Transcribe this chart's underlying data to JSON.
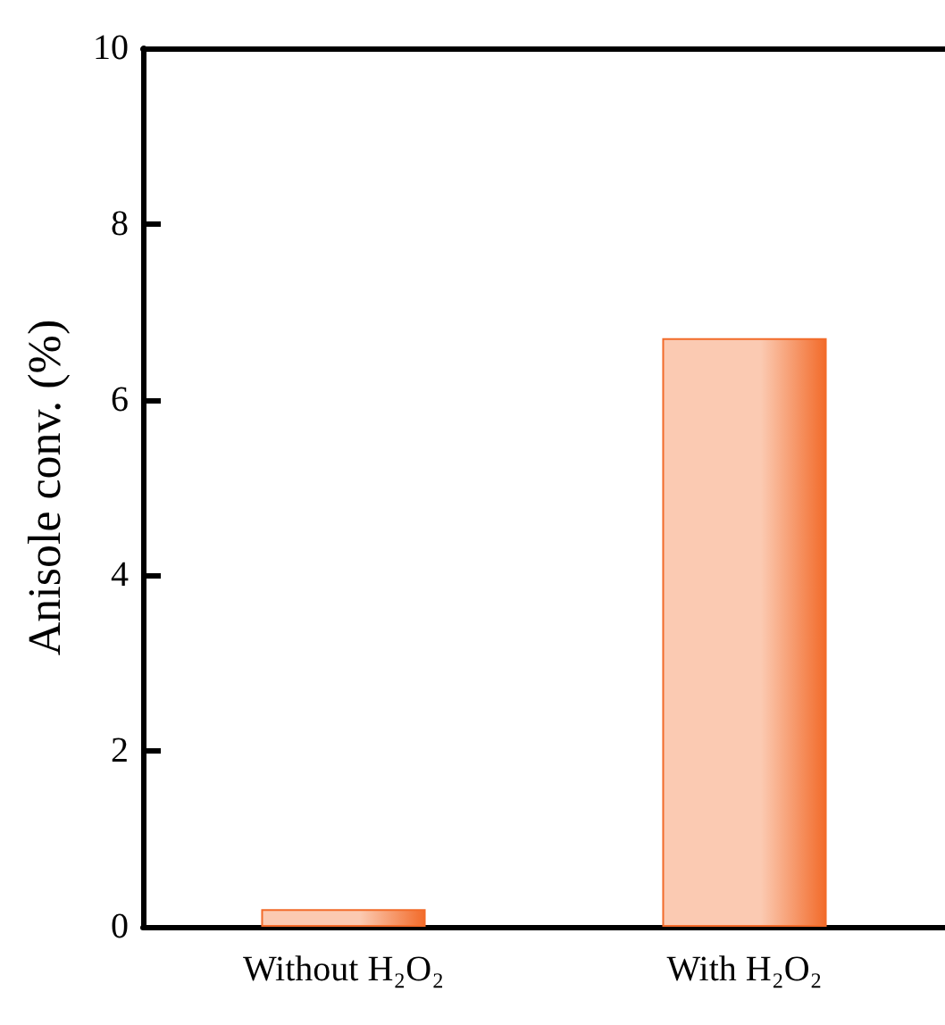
{
  "chart_data": {
    "type": "bar",
    "ylabel": "Anisole conv. (%)",
    "categories": [
      "Without H₂O₂",
      "With H₂O₂"
    ],
    "values": [
      0.2,
      6.7
    ],
    "color": "#f26b2a",
    "ylim": [
      0,
      10
    ],
    "yticks": [
      0,
      2,
      4,
      6,
      8,
      10
    ],
    "grid": false
  }
}
